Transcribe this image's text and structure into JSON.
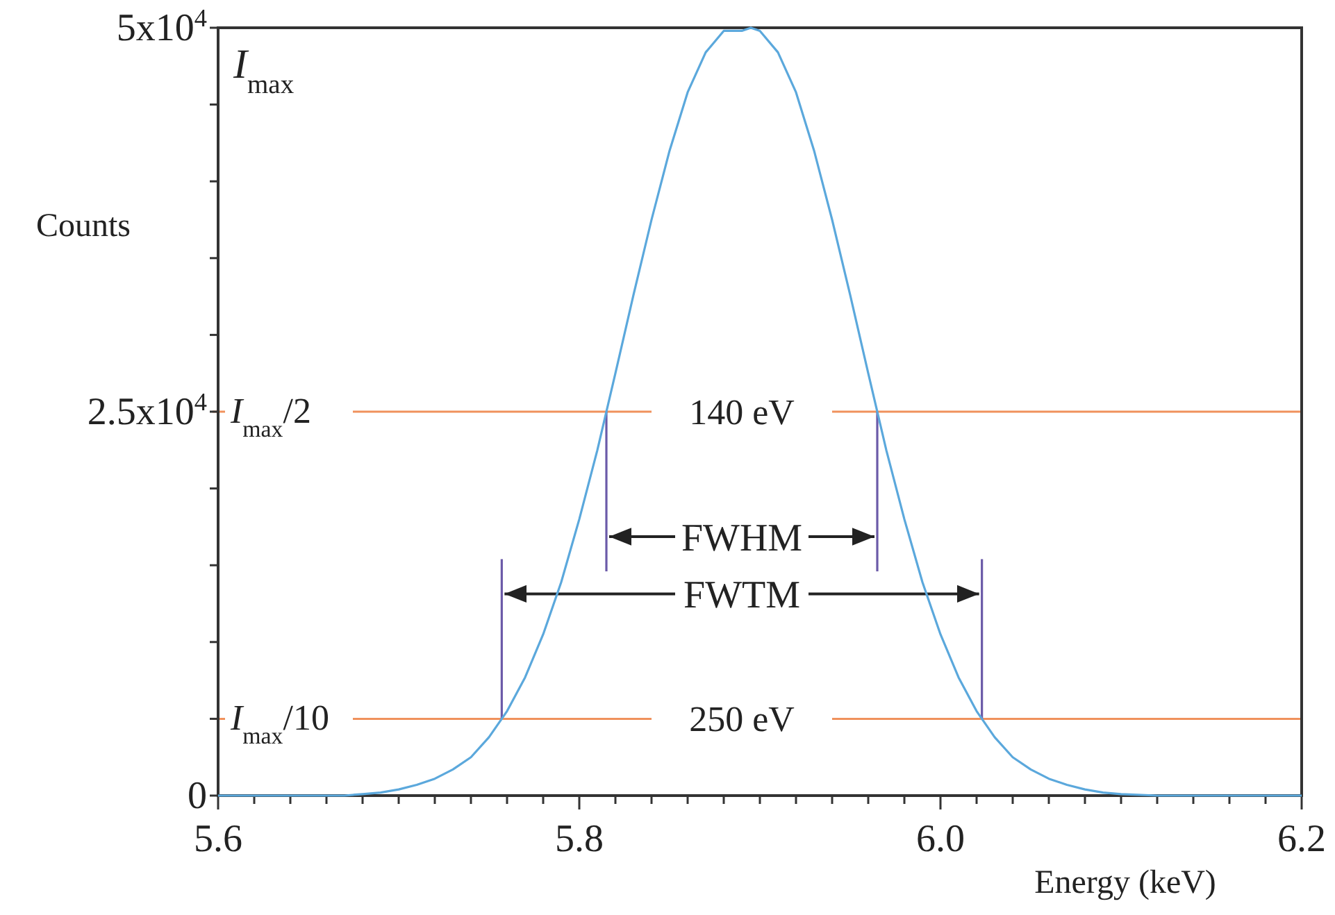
{
  "chart_data": {
    "type": "line",
    "xlabel": "Energy (keV)",
    "ylabel": "Counts",
    "xlim": [
      5.6,
      6.2
    ],
    "ylim": [
      0,
      50000
    ],
    "xticks": [
      5.6,
      {
        "value": 5.62,
        "label": null
      },
      {
        "value": 5.64,
        "label": null
      },
      {
        "value": 5.66,
        "label": null
      },
      {
        "value": 5.68,
        "label": null
      },
      {
        "value": 5.7,
        "label": null
      },
      {
        "value": 5.72,
        "label": null
      },
      {
        "value": 5.74,
        "label": null
      },
      {
        "value": 5.76,
        "label": null
      },
      {
        "value": 5.78,
        "label": null
      },
      5.8,
      {
        "value": 5.82,
        "label": null
      },
      {
        "value": 5.84,
        "label": null
      },
      {
        "value": 5.86,
        "label": null
      },
      {
        "value": 5.88,
        "label": null
      },
      {
        "value": 5.9,
        "label": null
      },
      {
        "value": 5.92,
        "label": null
      },
      {
        "value": 5.94,
        "label": null
      },
      {
        "value": 5.96,
        "label": null
      },
      {
        "value": 5.98,
        "label": null
      },
      {
        "value": 6.0,
        "label": "6.0"
      },
      {
        "value": 6.02,
        "label": null
      },
      {
        "value": 6.04,
        "label": null
      },
      {
        "value": 6.06,
        "label": null
      },
      {
        "value": 6.08,
        "label": null
      },
      {
        "value": 6.1,
        "label": null
      },
      {
        "value": 6.12,
        "label": null
      },
      {
        "value": 6.14,
        "label": null
      },
      {
        "value": 6.16,
        "label": null
      },
      {
        "value": 6.18,
        "label": null
      },
      6.2
    ],
    "yticks": [
      0,
      {
        "value": 5000,
        "label": null
      },
      {
        "value": 10000,
        "label": null
      },
      {
        "value": 15000,
        "label": null
      },
      {
        "value": 20000,
        "label": null
      },
      {
        "value": 25000,
        "label": "2.5x10$^{4}$"
      },
      {
        "value": 30000,
        "label": null
      },
      {
        "value": 35000,
        "label": null
      },
      {
        "value": 40000,
        "label": null
      },
      {
        "value": 45000,
        "label": null
      },
      {
        "value": 50000,
        "label": "5x10$^{4}$"
      }
    ],
    "series": [
      {
        "color": "#5ba8dc",
        "x": [
          5.6,
          5.65,
          5.67,
          5.68,
          5.69,
          5.7,
          5.71,
          5.72,
          5.73,
          5.74,
          5.75,
          5.76,
          5.77,
          5.78,
          5.79,
          5.8,
          5.81,
          5.82,
          5.83,
          5.84,
          5.85,
          5.86,
          5.87,
          5.88,
          5.89,
          5.895,
          5.9,
          5.91,
          5.92,
          5.93,
          5.94,
          5.95,
          5.96,
          5.97,
          5.98,
          5.99,
          6.0,
          6.01,
          6.02,
          6.03,
          6.04,
          6.05,
          6.06,
          6.07,
          6.08,
          6.09,
          6.1,
          6.12,
          6.2
        ],
        "values": [
          0,
          0,
          0,
          100,
          200,
          400,
          700,
          1100,
          1700,
          2500,
          3800,
          5500,
          7700,
          10500,
          13900,
          18000,
          22500,
          27500,
          32600,
          37500,
          42000,
          45800,
          48400,
          49800,
          49800,
          50000,
          49800,
          48400,
          45800,
          42000,
          37500,
          32600,
          27500,
          22500,
          18000,
          13900,
          10500,
          7700,
          5500,
          3800,
          2500,
          1700,
          1100,
          700,
          400,
          200,
          100,
          0,
          0
        ]
      }
    ],
    "ref_lines": [
      {
        "axis": "y",
        "value": 25000,
        "label": "140 eV",
        "color": "#f0915c"
      },
      {
        "axis": "y",
        "value": 5000,
        "label": "250 eV",
        "color": "#f0915c"
      }
    ],
    "annotations": [
      "I$_{max}$",
      "I$_{max}$/2",
      "I$_{max}$/10",
      "FWHM",
      "FWTM"
    ]
  }
}
